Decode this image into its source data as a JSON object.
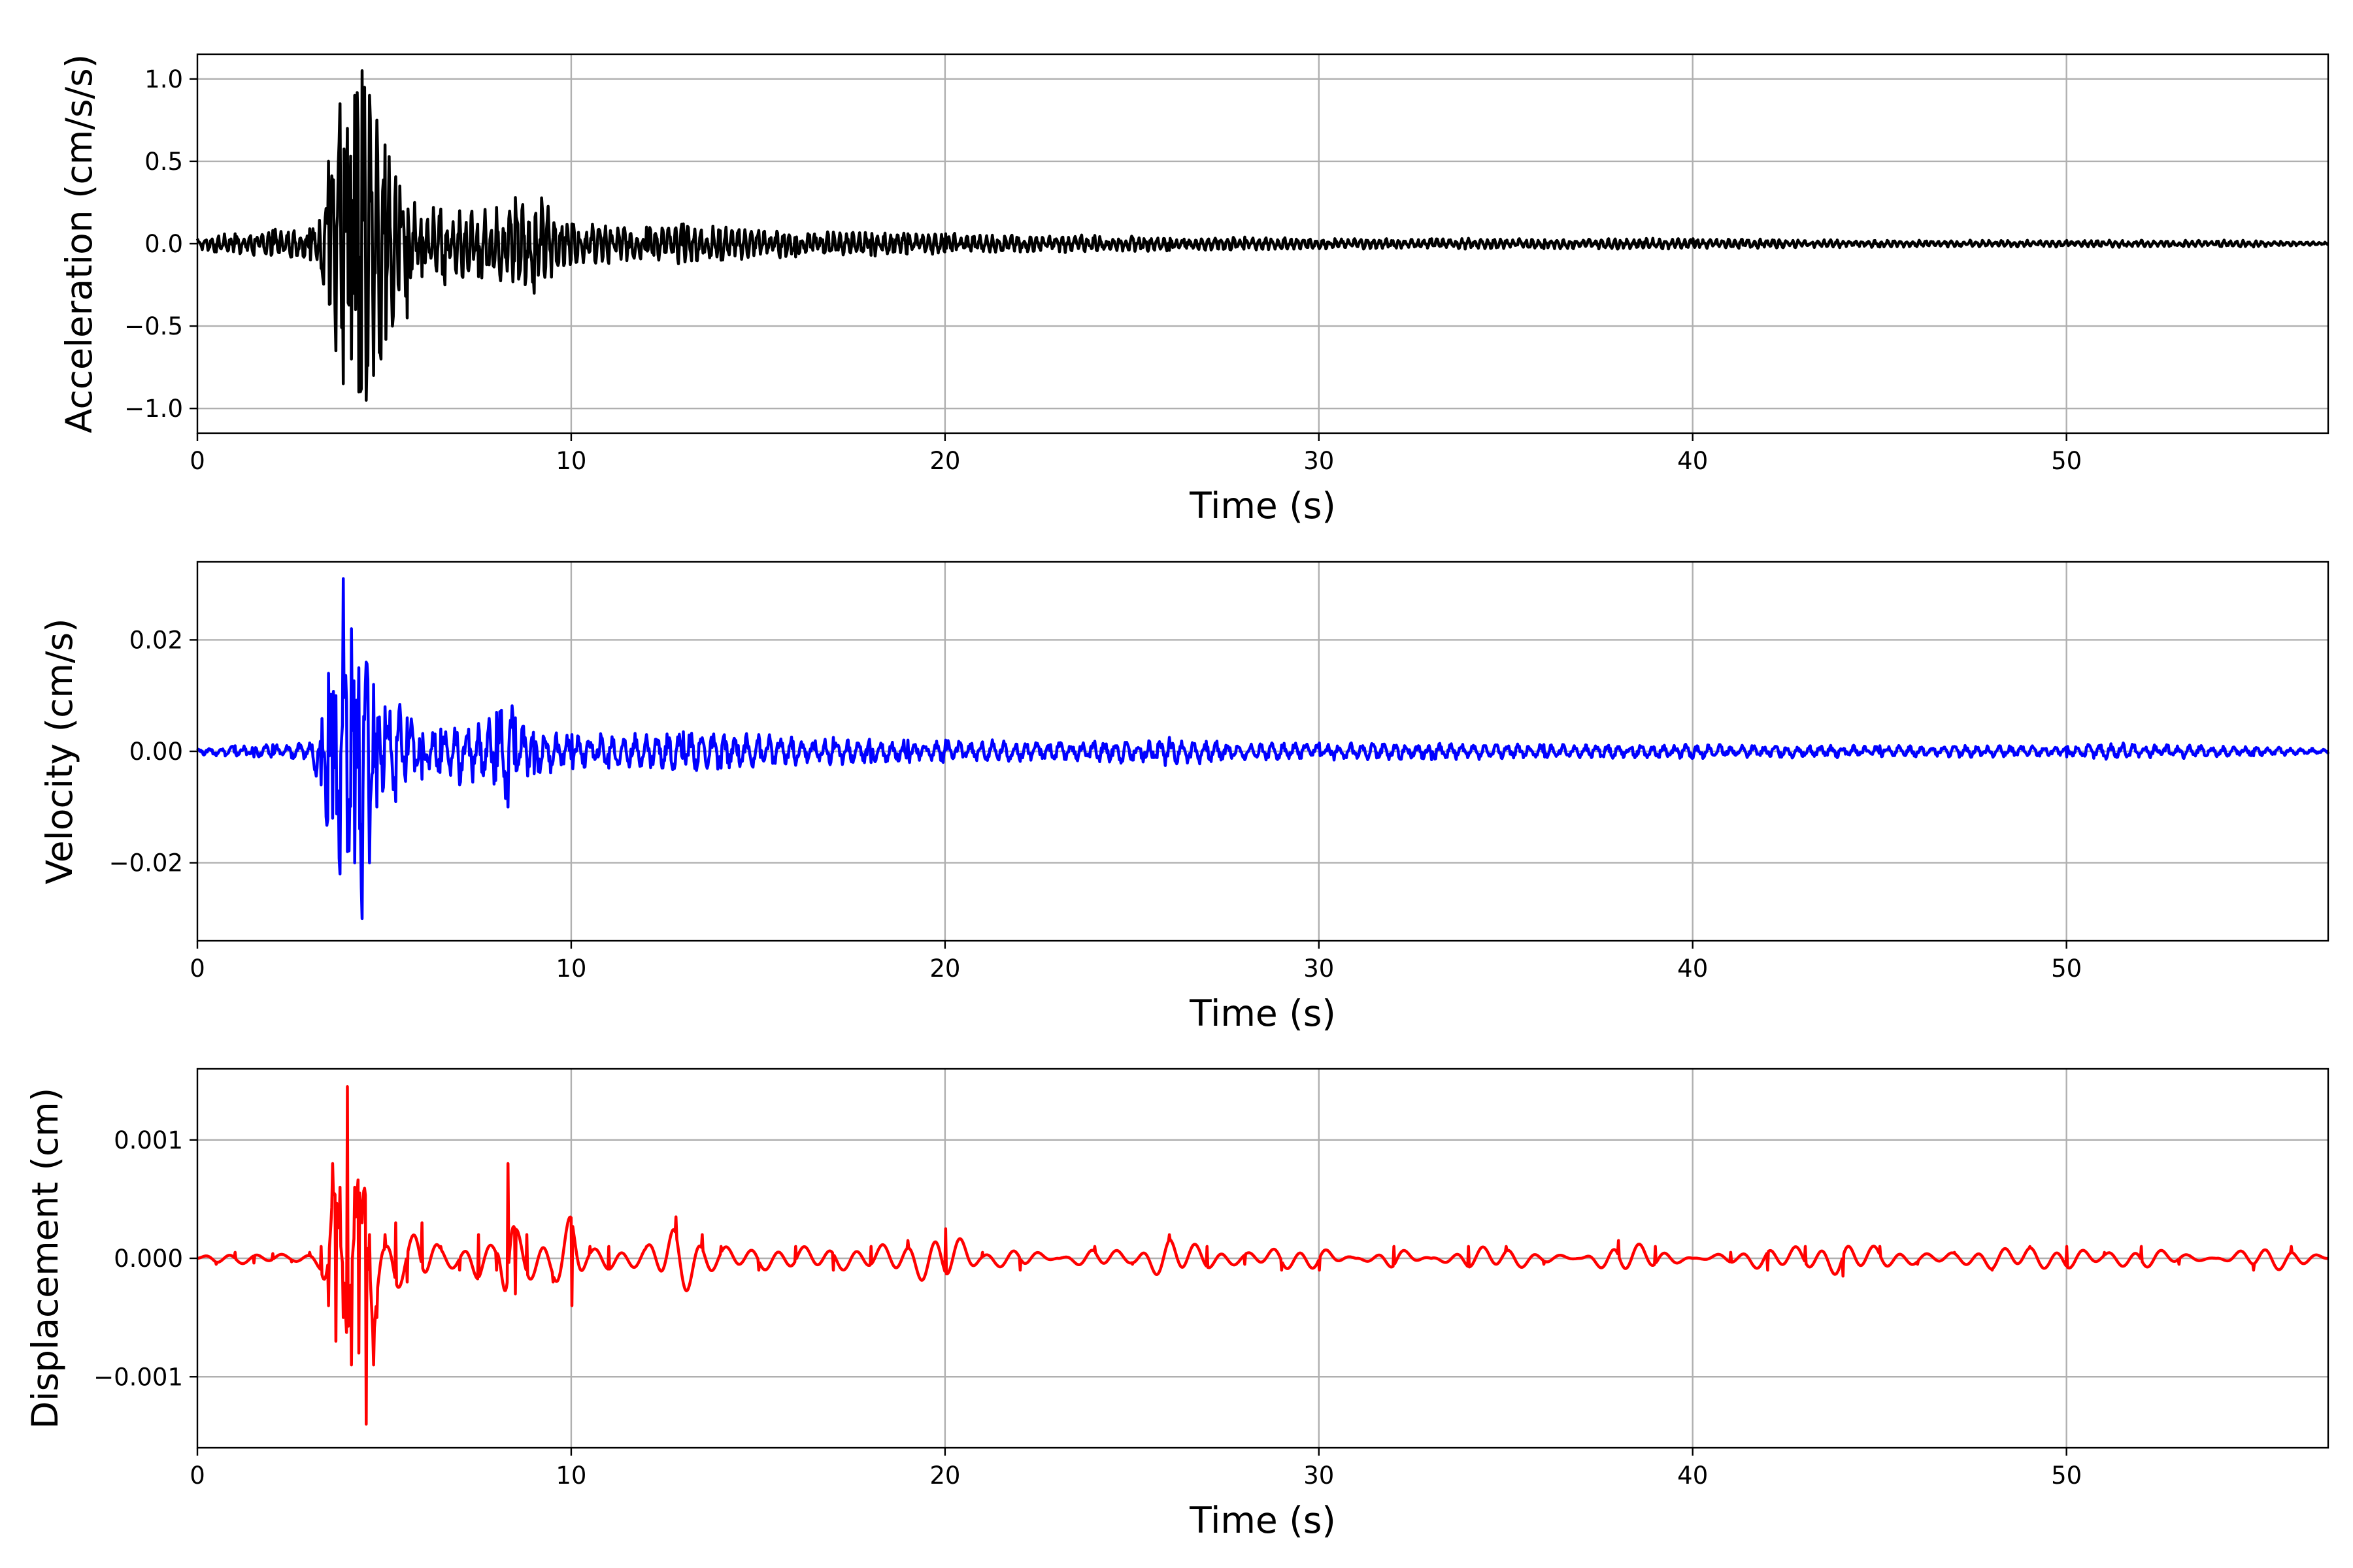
{
  "chart_data": [
    {
      "type": "line",
      "id": "acceleration",
      "xlabel": "Time (s)",
      "ylabel": "Acceleration (cm/s/s)",
      "xlim": [
        0,
        57
      ],
      "ylim": [
        -1.15,
        1.15
      ],
      "xticks": [
        0,
        10,
        20,
        30,
        40,
        50
      ],
      "xtick_labels": [
        "0",
        "10",
        "20",
        "30",
        "40",
        "50"
      ],
      "yticks": [
        1.0,
        0.5,
        0.0,
        -0.5,
        -1.0
      ],
      "ytick_labels": [
        "1.0",
        "0.5",
        "0.0",
        "−0.5",
        "−1.0"
      ],
      "grid": true,
      "color": "#000000",
      "series": [
        {
          "x": [
            0,
            0.5,
            1,
            1.5,
            2,
            2.5,
            3,
            3.3,
            3.5,
            3.7,
            3.8,
            3.9,
            4.0,
            4.1,
            4.2,
            4.3,
            4.4,
            4.5,
            4.6,
            4.7,
            4.8,
            4.9,
            5.0,
            5.2,
            5.4,
            5.6,
            5.8,
            6.0,
            6.3,
            6.6,
            7.0,
            7.5,
            8.0,
            8.5,
            9.0,
            10,
            11,
            12,
            13,
            14,
            15,
            16,
            17,
            18,
            19,
            20,
            22,
            24,
            26,
            28,
            30,
            33,
            36,
            40,
            45,
            50,
            55,
            57
          ],
          "y": [
            0.03,
            -0.05,
            0.06,
            -0.07,
            0.08,
            -0.08,
            0.09,
            -0.15,
            0.5,
            -0.65,
            0.85,
            -0.85,
            0.7,
            -0.7,
            0.9,
            -0.9,
            1.05,
            -0.95,
            0.9,
            -0.8,
            0.75,
            -0.7,
            0.6,
            -0.5,
            0.35,
            -0.45,
            0.25,
            -0.2,
            0.22,
            -0.25,
            0.2,
            -0.2,
            0.22,
            0.28,
            -0.3,
            0.12,
            -0.12,
            0.1,
            0.12,
            -0.1,
            0.08,
            -0.08,
            0.07,
            -0.07,
            0.06,
            0.06,
            -0.05,
            0.05,
            -0.04,
            0.04,
            -0.03,
            0.03,
            -0.03,
            0.03,
            -0.02,
            0.02,
            -0.02,
            0.01
          ]
        }
      ]
    },
    {
      "type": "line",
      "id": "velocity",
      "xlabel": "Time (s)",
      "ylabel": "Velocity (cm/s)",
      "xlim": [
        0,
        57
      ],
      "ylim": [
        -0.034,
        0.034
      ],
      "xticks": [
        0,
        10,
        20,
        30,
        40,
        50
      ],
      "xtick_labels": [
        "0",
        "10",
        "20",
        "30",
        "40",
        "50"
      ],
      "yticks": [
        0.02,
        0.0,
        -0.02
      ],
      "ytick_labels": [
        "0.02",
        "0.00",
        "−0.02"
      ],
      "grid": true,
      "color": "#0000ff",
      "series": [
        {
          "x": [
            0,
            0.5,
            1,
            1.5,
            2,
            2.5,
            3,
            3.3,
            3.5,
            3.6,
            3.7,
            3.8,
            3.9,
            4.0,
            4.1,
            4.2,
            4.3,
            4.4,
            4.5,
            4.6,
            4.7,
            4.8,
            5.0,
            5.3,
            5.6,
            6.0,
            6.5,
            7.0,
            7.5,
            8.0,
            8.3,
            8.5,
            9.0,
            10,
            11,
            12,
            13,
            14,
            15,
            16,
            17,
            18,
            19,
            20,
            22,
            24,
            26,
            28,
            30,
            33,
            36,
            40,
            45,
            50,
            51.5,
            55,
            57
          ],
          "y": [
            0.0005,
            -0.0008,
            0.001,
            -0.001,
            0.0012,
            -0.0012,
            0.0015,
            -0.006,
            0.014,
            -0.012,
            0.01,
            -0.022,
            0.031,
            -0.018,
            0.022,
            -0.02,
            0.015,
            -0.03,
            0.016,
            -0.02,
            0.012,
            -0.01,
            0.008,
            -0.009,
            0.006,
            -0.005,
            0.004,
            -0.006,
            0.005,
            0.007,
            -0.01,
            0.006,
            -0.004,
            0.003,
            -0.003,
            0.003,
            0.0035,
            -0.003,
            0.003,
            -0.0025,
            0.0025,
            -0.002,
            0.002,
            0.002,
            -0.0018,
            0.0018,
            0.0025,
            -0.0015,
            0.0015,
            -0.0015,
            0.0012,
            -0.0012,
            0.001,
            -0.001,
            0.0015,
            -0.0008,
            0.0005
          ]
        }
      ]
    },
    {
      "type": "line",
      "id": "displacement",
      "xlabel": "Time (s)",
      "ylabel": "Displacement (cm)",
      "xlim": [
        0,
        57
      ],
      "ylim": [
        -0.0016,
        0.0016
      ],
      "xticks": [
        0,
        10,
        20,
        30,
        40,
        50
      ],
      "xtick_labels": [
        "0",
        "10",
        "20",
        "30",
        "40",
        "50"
      ],
      "yticks": [
        0.001,
        0.0,
        -0.001
      ],
      "ytick_labels": [
        "0.001",
        "0.000",
        "−0.001"
      ],
      "grid": true,
      "color": "#ff0000",
      "series": [
        {
          "x": [
            0,
            0.5,
            1,
            1.5,
            2,
            2.5,
            3,
            3.3,
            3.5,
            3.6,
            3.7,
            3.8,
            3.9,
            4.0,
            4.1,
            4.2,
            4.3,
            4.4,
            4.5,
            4.6,
            4.7,
            4.8,
            5.0,
            5.3,
            5.6,
            6.0,
            6.5,
            7.0,
            7.5,
            8.0,
            8.3,
            8.5,
            8.8,
            9.5,
            10.0,
            10.5,
            11,
            12,
            12.8,
            13.5,
            14,
            15,
            16,
            17,
            18,
            19,
            20,
            21,
            22,
            23,
            24,
            25,
            26,
            27,
            28,
            29,
            30,
            31,
            32,
            33,
            34,
            35,
            36,
            37,
            38,
            39,
            40,
            41,
            42,
            43,
            44,
            45,
            46,
            47,
            48,
            49,
            50,
            51,
            52,
            53,
            54,
            55,
            56,
            57
          ],
          "y": [
            0.0,
            -5e-05,
            5e-05,
            -4e-05,
            4e-05,
            -3e-05,
            5e-05,
            0.0001,
            -0.0004,
            0.0008,
            -0.0007,
            0.0006,
            -0.0005,
            0.00145,
            -0.0009,
            0.0006,
            -0.0008,
            0.0003,
            -0.0014,
            0.0002,
            -0.0009,
            -0.0005,
            0.0002,
            0.0003,
            -0.0002,
            0.0003,
            0.0001,
            -0.0001,
            0.0002,
            -0.0001,
            0.0008,
            -0.0003,
            0.0002,
            -0.0002,
            -0.0004,
            0.0001,
            0.0001,
            0.0001,
            0.00035,
            0.0002,
            0.0001,
            -0.0001,
            0.0001,
            -0.0001,
            0.0001,
            0.00015,
            0.00025,
            5e-05,
            -0.0001,
            0.0,
            0.0001,
            -5e-05,
            0.0002,
            0.0001,
            -5e-05,
            -0.0001,
            -0.0001,
            0.0,
            0.0001,
            0.0,
            0.0001,
            0.0001,
            -5e-05,
            0.0,
            0.00015,
            0.0001,
            0.0,
            5e-05,
            -0.0001,
            0.0001,
            -0.00015,
            0.0001,
            -5e-05,
            5e-05,
            -0.0001,
            0.0001,
            0.0001,
            5e-05,
            0.0001,
            -5e-05,
            0.0,
            -0.0001,
            0.0001,
            0.0
          ]
        }
      ]
    }
  ]
}
